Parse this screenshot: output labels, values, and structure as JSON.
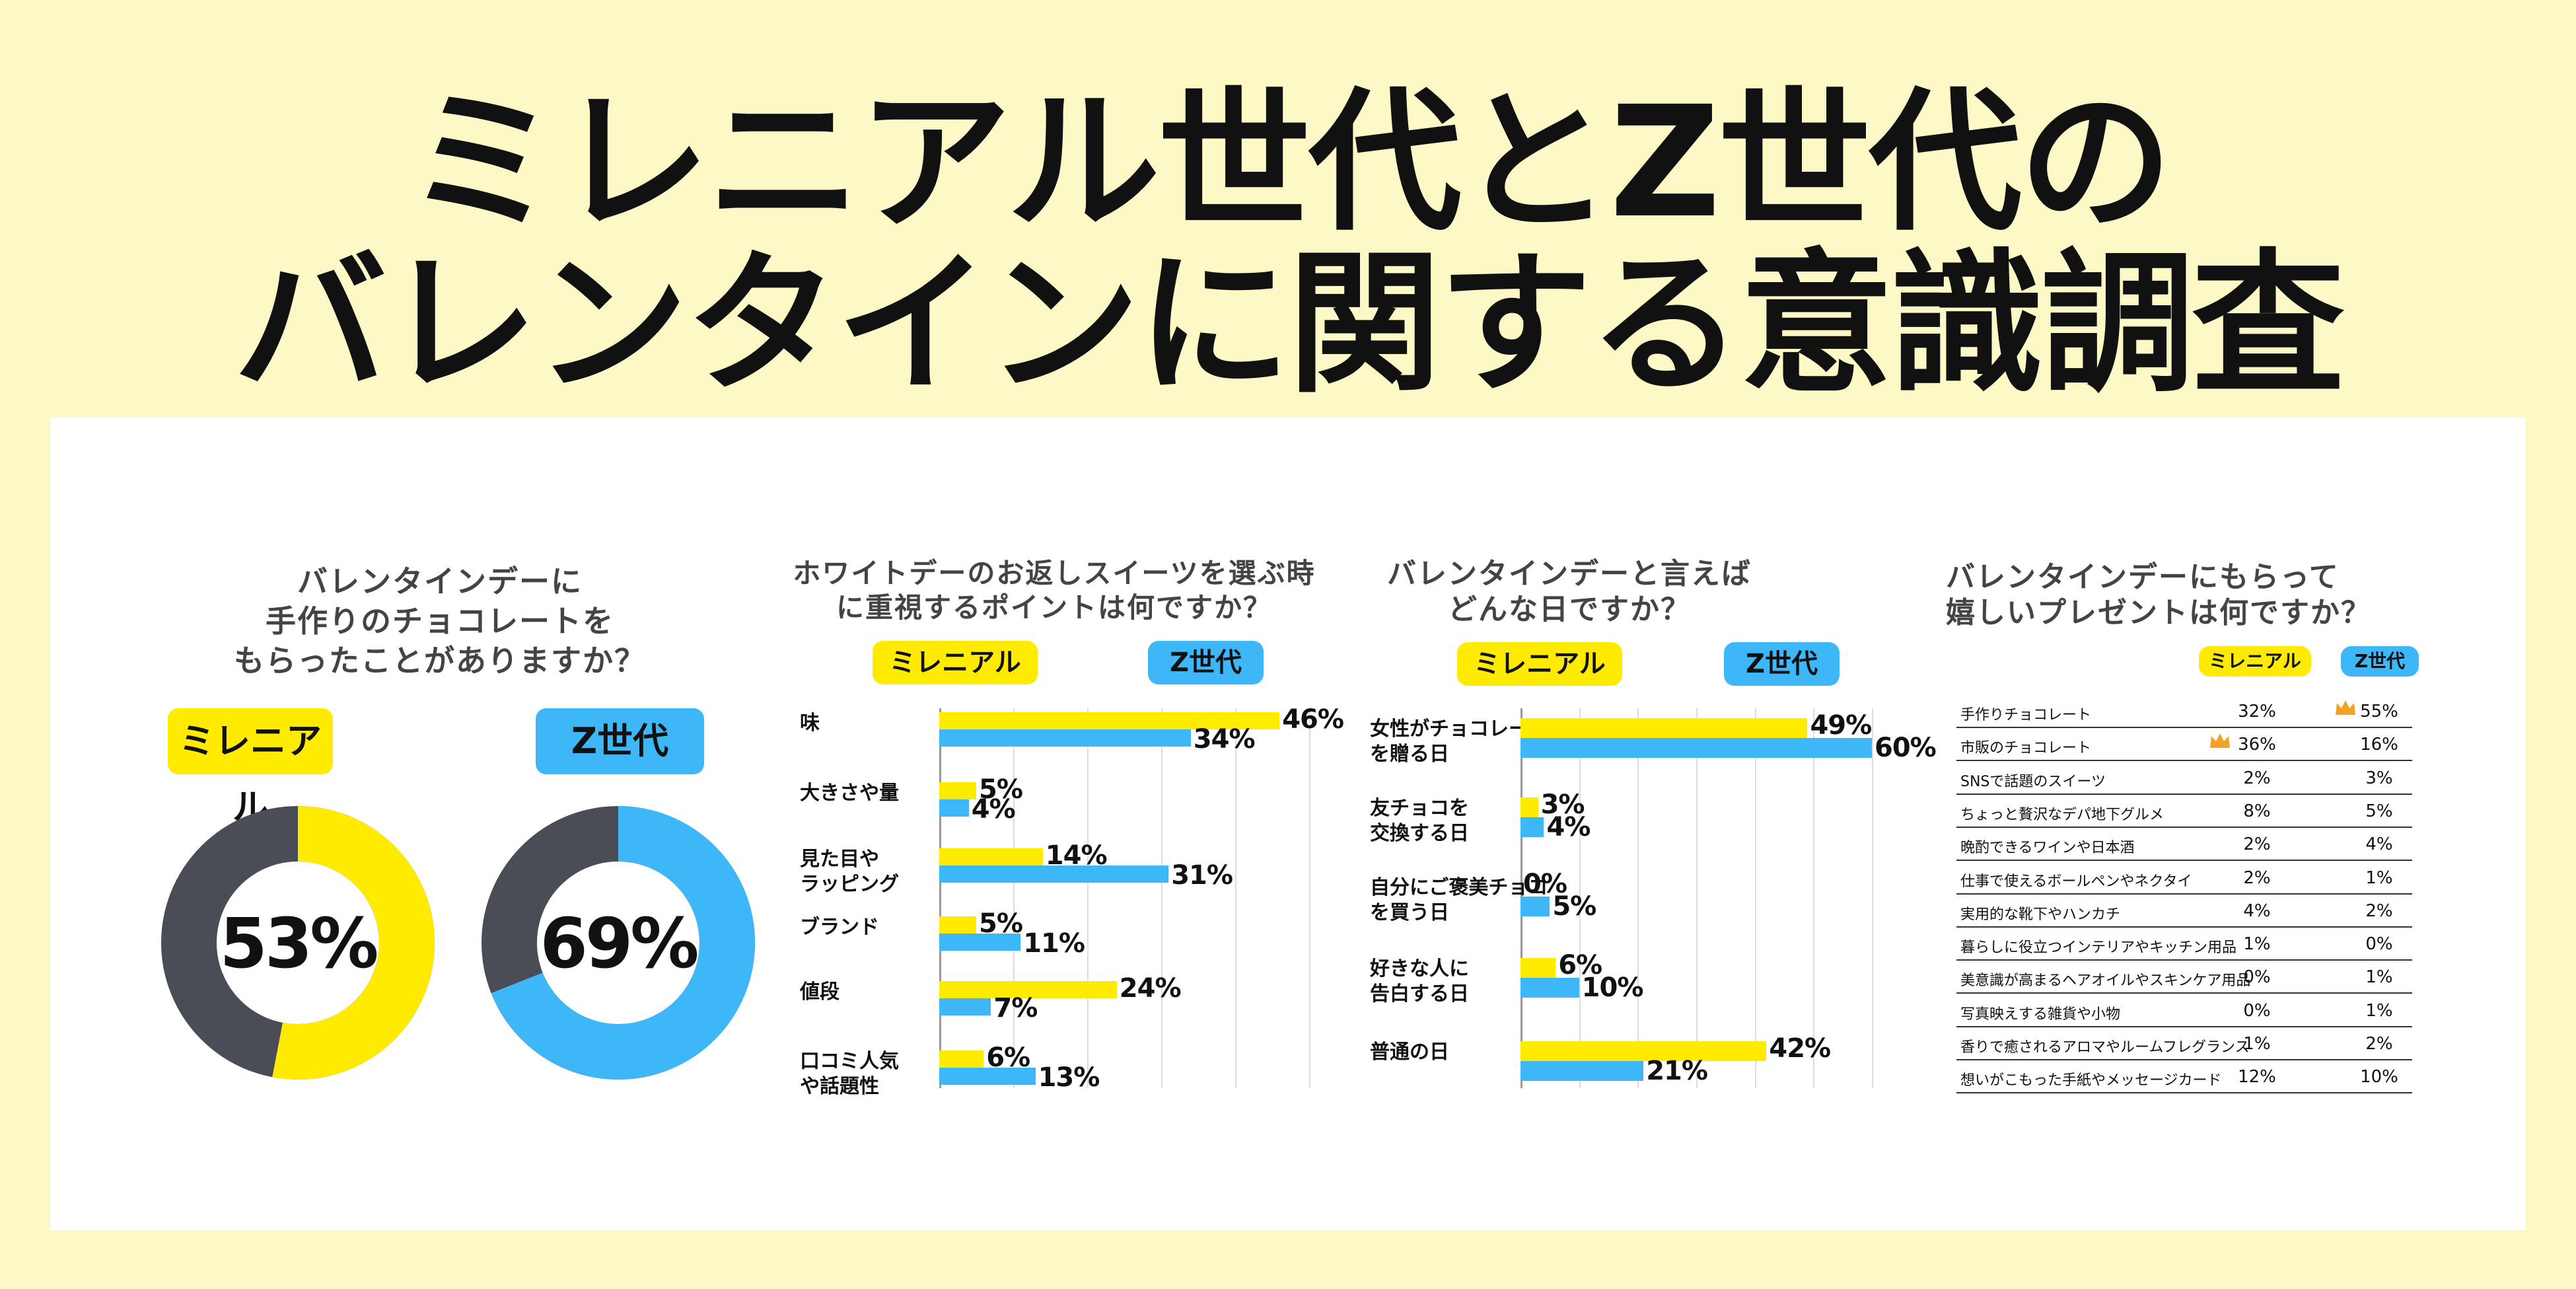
{
  "title": {
    "line1": "ミレニアル世代とZ世代の",
    "line2": "バレンタインに関する意識調査"
  },
  "colors": {
    "millennial": "#FFEB00",
    "genz": "#3DB7F8",
    "remainder": "#4A4D55",
    "background": "#FDF9C6"
  },
  "legend": {
    "millennial": "ミレニアル",
    "genz": "Z世代"
  },
  "chart_data": [
    {
      "type": "pie",
      "title": [
        "バレンタインデーに",
        "手作りのチョコレートを",
        "もらったことがありますか？"
      ],
      "series": [
        {
          "name": "ミレニアル",
          "value": 53,
          "label": "53%"
        },
        {
          "name": "Z世代",
          "value": 69,
          "label": "69%"
        }
      ]
    },
    {
      "type": "bar",
      "orientation": "horizontal",
      "title": [
        "ホワイトデーのお返しスイーツを選ぶ時",
        "に重視するポイントは何ですか？"
      ],
      "categories": [
        "味",
        "大きさや量",
        "見た目や\nラッピング",
        "ブランド",
        "値段",
        "口コミ人気\nや話題性"
      ],
      "series": [
        {
          "name": "ミレニアル",
          "values": [
            46,
            5,
            14,
            5,
            24,
            6
          ]
        },
        {
          "name": "Z世代",
          "values": [
            34,
            4,
            31,
            11,
            7,
            13
          ]
        }
      ],
      "xlim": [
        0,
        50
      ]
    },
    {
      "type": "bar",
      "orientation": "horizontal",
      "title": [
        "バレンタインデーと言えば",
        "どんな日ですか？"
      ],
      "categories": [
        "女性がチョコレート\nを贈る日",
        "友チョコを\n交換する日",
        "自分にご褒美チョコ\nを買う日",
        "好きな人に\n告白する日",
        "普通の日"
      ],
      "series": [
        {
          "name": "ミレニアル",
          "values": [
            49,
            3,
            0,
            6,
            42
          ]
        },
        {
          "name": "Z世代",
          "values": [
            60,
            4,
            5,
            10,
            21
          ]
        }
      ],
      "xlim": [
        0,
        60
      ]
    },
    {
      "type": "table",
      "title": [
        "バレンタインデーにもらって",
        "嬉しいプレゼントは何ですか？"
      ],
      "columns": [
        "",
        "ミレニアル",
        "Z世代"
      ],
      "rows": [
        {
          "item": "手作りチョコレート",
          "millennial": "32%",
          "genz": "55%",
          "crown": "genz"
        },
        {
          "item": "市販のチョコレート",
          "millennial": "36%",
          "genz": "16%",
          "crown": "millennial"
        },
        {
          "item": "SNSで話題のスイーツ",
          "millennial": "2%",
          "genz": "3%"
        },
        {
          "item": "ちょっと贅沢なデパ地下グルメ",
          "millennial": "8%",
          "genz": "5%"
        },
        {
          "item": "晩酌できるワインや日本酒",
          "millennial": "2%",
          "genz": "4%"
        },
        {
          "item": "仕事で使えるボールペンやネクタイ",
          "millennial": "2%",
          "genz": "1%"
        },
        {
          "item": "実用的な靴下やハンカチ",
          "millennial": "4%",
          "genz": "2%"
        },
        {
          "item": "暮らしに役立つインテリアやキッチン用品",
          "millennial": "1%",
          "genz": "0%"
        },
        {
          "item": "美意識が高まるヘアオイルやスキンケア用品",
          "millennial": "0%",
          "genz": "1%"
        },
        {
          "item": "写真映えする雑貨や小物",
          "millennial": "0%",
          "genz": "1%"
        },
        {
          "item": "香りで癒されるアロマやルームフレグランス",
          "millennial": "1%",
          "genz": "2%"
        },
        {
          "item": "想いがこもった手紙やメッセージカード",
          "millennial": "12%",
          "genz": "10%"
        }
      ]
    }
  ]
}
